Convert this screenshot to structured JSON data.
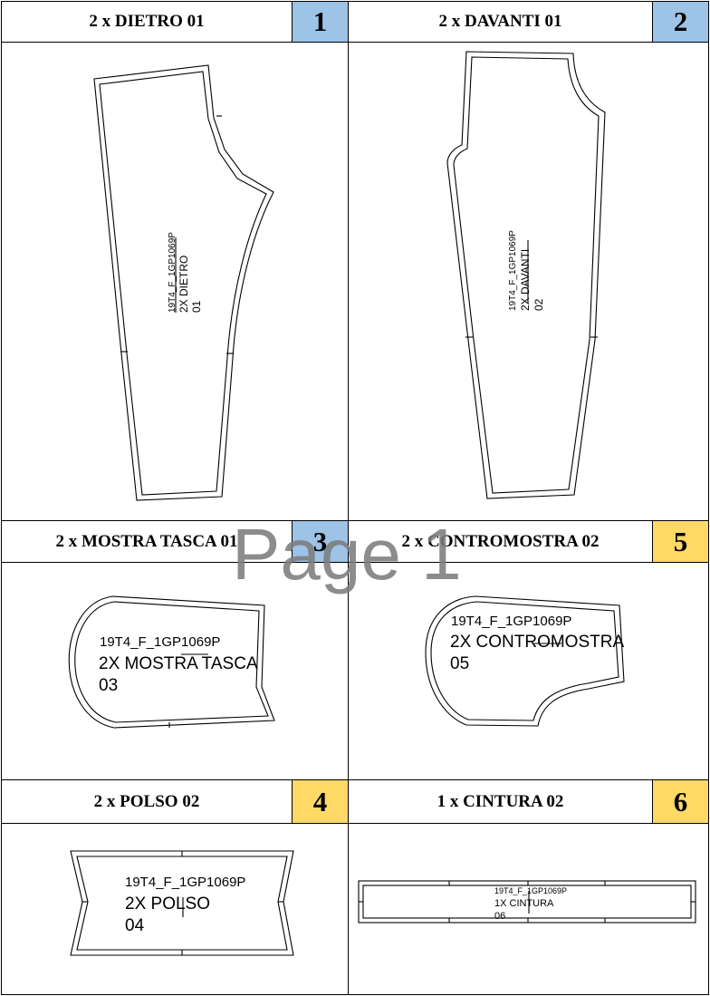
{
  "watermark": "Page 1",
  "colors": {
    "blue": "#9dc3e6",
    "yellow": "#ffd966",
    "line": "#000000"
  },
  "pieces": [
    {
      "title": "2 x DIETRO 01",
      "number": "1",
      "number_color": "blue",
      "label_lines": [
        "19T4_F_1GP1069P",
        "2X DIETRO",
        "01"
      ]
    },
    {
      "title": "2 x DAVANTI 01",
      "number": "2",
      "number_color": "blue",
      "label_lines": [
        "19T4_F_1GP1069P",
        "2X DAVANTI",
        "02"
      ]
    },
    {
      "title": "2 x MOSTRA TASCA 01",
      "number": "3",
      "number_color": "blue",
      "label_lines": [
        "19T4_F_1GP1069P",
        "2X MOSTRA TASCA",
        "03"
      ]
    },
    {
      "title": "2 x CONTROMOSTRA 02",
      "number": "5",
      "number_color": "yellow",
      "label_lines": [
        "19T4_F_1GP1069P",
        "2X CONTROMOSTRA",
        "05"
      ]
    },
    {
      "title": "2 x POLSO 02",
      "number": "4",
      "number_color": "yellow",
      "label_lines": [
        "19T4_F_1GP1069P",
        "2X POLSO",
        "04"
      ]
    },
    {
      "title": "1 x CINTURA 02",
      "number": "6",
      "number_color": "yellow",
      "label_lines": [
        "19T4_F_1GP1069P",
        "1X CINTURA",
        "06"
      ]
    }
  ]
}
